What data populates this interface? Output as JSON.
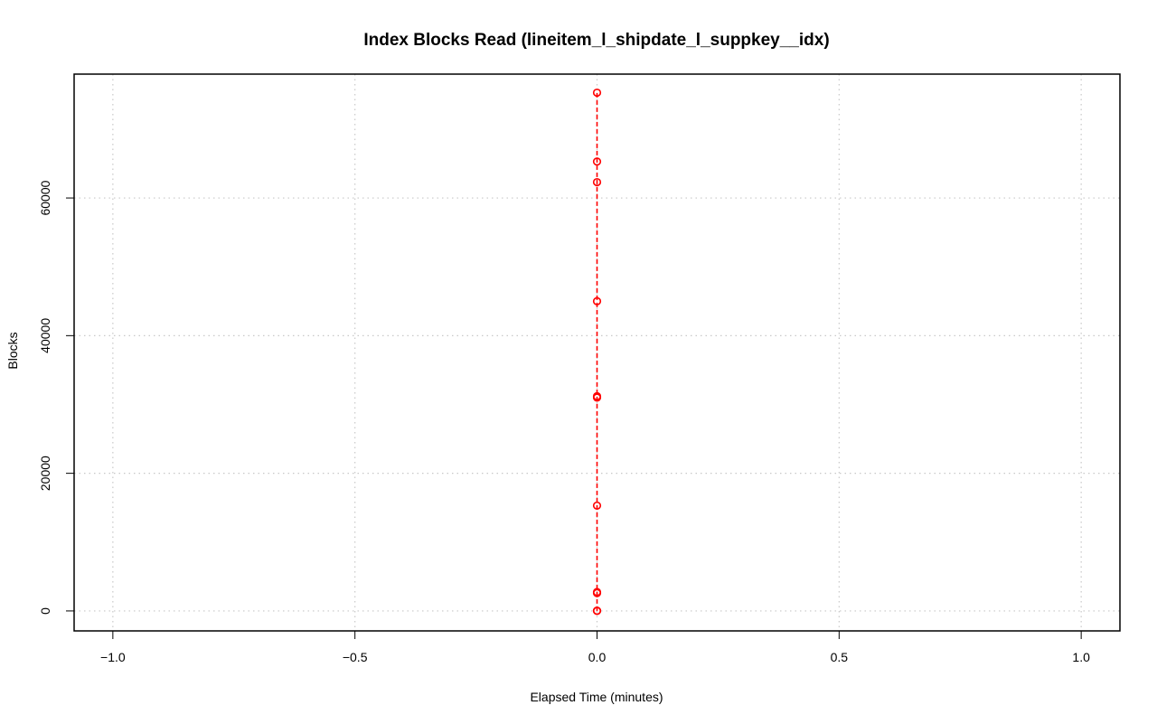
{
  "chart_data": {
    "type": "scatter",
    "title": "Index Blocks Read (lineitem_l_shipdate_l_suppkey__idx)",
    "xlabel": "Elapsed Time (minutes)",
    "ylabel": "Blocks",
    "xlim": [
      -1.08,
      1.08
    ],
    "ylim": [
      -2900,
      78000
    ],
    "grid": true,
    "x_ticks": [
      -1.0,
      -0.5,
      0.0,
      0.5,
      1.0
    ],
    "x_tick_labels": [
      "−1.0",
      "−0.5",
      "0.0",
      "0.5",
      "1.0"
    ],
    "y_ticks": [
      0,
      20000,
      40000,
      60000
    ],
    "y_tick_labels": [
      "0",
      "20000",
      "40000",
      "60000"
    ],
    "series": [
      {
        "color": "#ff0000",
        "line_style": "dashed",
        "marker": "open-circle",
        "points": [
          {
            "x": 0,
            "y": 0
          },
          {
            "x": 0,
            "y": 40
          },
          {
            "x": 0,
            "y": 2600
          },
          {
            "x": 0,
            "y": 2750
          },
          {
            "x": 0,
            "y": 15300
          },
          {
            "x": 0,
            "y": 31000
          },
          {
            "x": 0,
            "y": 31200
          },
          {
            "x": 0,
            "y": 45000
          },
          {
            "x": 0,
            "y": 62300
          },
          {
            "x": 0,
            "y": 65300
          },
          {
            "x": 0,
            "y": 75300
          }
        ]
      }
    ]
  }
}
